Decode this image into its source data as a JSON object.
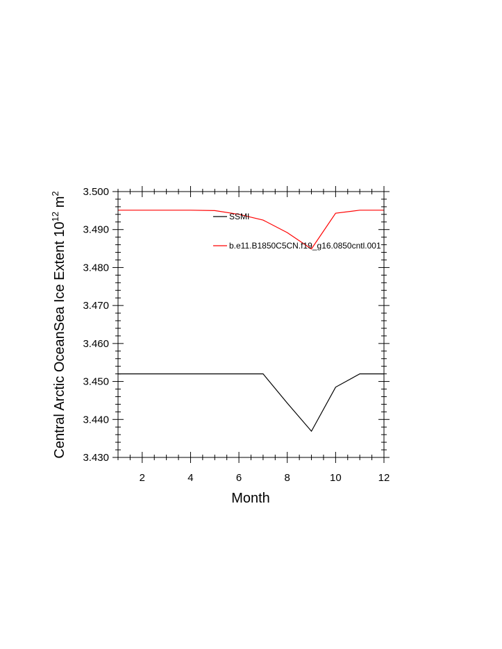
{
  "chart_data": {
    "type": "line",
    "xlabel": "Month",
    "ylabel": "Central Arctic OceanSea Ice Extent 10",
    "ylabel_exponent": "12",
    "ylabel_unit": " m",
    "ylabel_unit_exponent": "2",
    "xlim": [
      1,
      12
    ],
    "ylim": [
      3.43,
      3.5
    ],
    "x_ticks": [
      2,
      4,
      6,
      8,
      10,
      12
    ],
    "y_ticks": [
      "3.430",
      "3.440",
      "3.450",
      "3.460",
      "3.470",
      "3.480",
      "3.490",
      "3.500"
    ],
    "grid": false,
    "legend_placement": "top-right inside",
    "x": [
      1,
      2,
      3,
      4,
      5,
      6,
      7,
      8,
      9,
      10,
      11,
      12
    ],
    "series": [
      {
        "name": "SSMI",
        "color": "#000000",
        "values": [
          3.452,
          3.452,
          3.452,
          3.452,
          3.452,
          3.452,
          3.452,
          3.4443,
          3.4369,
          3.4485,
          3.452,
          3.452
        ]
      },
      {
        "name": "b.e11.B1850C5CN.f19_g16.0850cntl.001",
        "color": "#ff0000",
        "values": [
          3.4951,
          3.4951,
          3.4951,
          3.4951,
          3.495,
          3.494,
          3.4925,
          3.4892,
          3.4849,
          3.4943,
          3.4951,
          3.4951
        ]
      }
    ]
  }
}
